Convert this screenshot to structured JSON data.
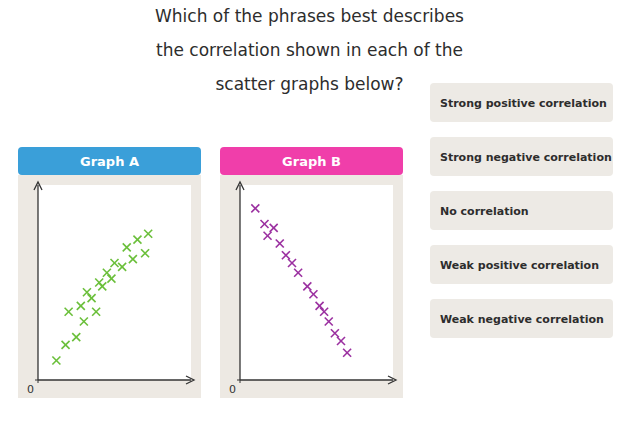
{
  "chart_data": {
    "type": "scatter",
    "title": "Which of the phrases best describes\nthe correlation shown in each of the\nscatter graphs below?",
    "annotations": [
      "Strong positive correlation",
      "Strong negative correlation",
      "No correlation",
      "Weak positive correlation",
      "Weak negative correlation"
    ],
    "xlim": [
      0,
      1
    ],
    "ylim": [
      0,
      1
    ],
    "xticks": [
      0
    ],
    "yticks": [
      0
    ],
    "marker": "x",
    "series": [
      {
        "name": "Graph A",
        "color": "#6abf3a",
        "x": [
          0.12,
          0.18,
          0.2,
          0.25,
          0.28,
          0.3,
          0.32,
          0.35,
          0.38,
          0.4,
          0.42,
          0.45,
          0.48,
          0.5,
          0.55,
          0.58,
          0.62,
          0.65,
          0.7,
          0.72
        ],
        "values": [
          0.1,
          0.18,
          0.35,
          0.22,
          0.38,
          0.3,
          0.45,
          0.42,
          0.35,
          0.5,
          0.48,
          0.55,
          0.52,
          0.6,
          0.58,
          0.68,
          0.62,
          0.72,
          0.65,
          0.75
        ]
      },
      {
        "name": "Graph B",
        "color": "#9b30a0",
        "x": [
          0.1,
          0.16,
          0.18,
          0.22,
          0.26,
          0.3,
          0.34,
          0.38,
          0.44,
          0.48,
          0.52,
          0.55,
          0.58,
          0.62,
          0.66,
          0.7
        ],
        "values": [
          0.88,
          0.8,
          0.74,
          0.78,
          0.7,
          0.64,
          0.6,
          0.55,
          0.48,
          0.44,
          0.38,
          0.35,
          0.3,
          0.24,
          0.2,
          0.14
        ]
      }
    ]
  }
}
